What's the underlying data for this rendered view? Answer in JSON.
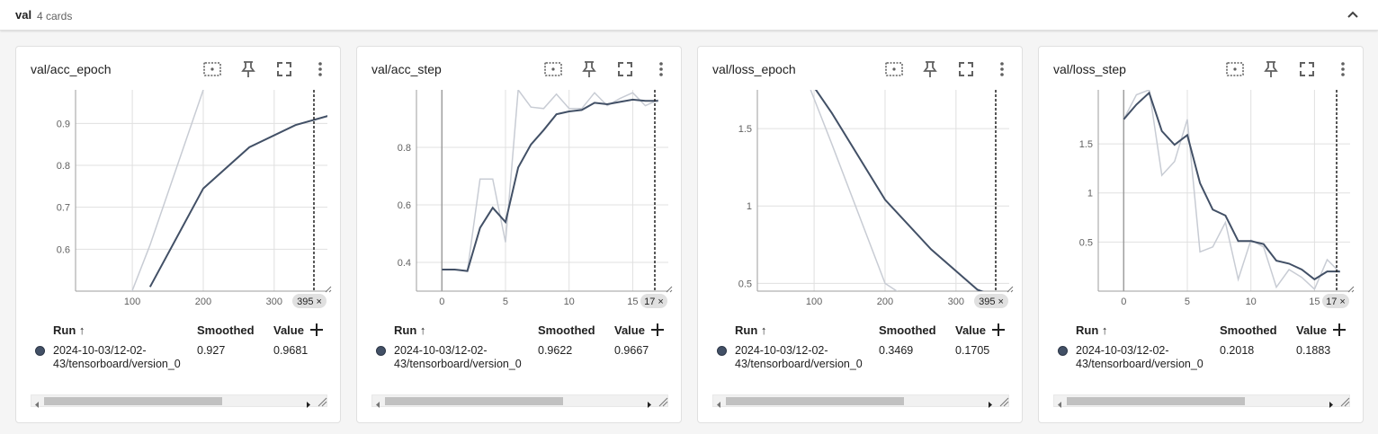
{
  "section": {
    "name": "val",
    "count_label": "4 cards",
    "collapse_icon": "chevron-up-icon"
  },
  "table_headers": {
    "run": "Run ↑",
    "smoothed": "Smoothed",
    "value": "Value"
  },
  "colors": {
    "smoothed_line": "#425066",
    "raw_line": "#c8ccd4",
    "grid": "#e0e0e0",
    "axis": "#9e9e9e"
  },
  "cards": [
    {
      "title": "val/acc_epoch",
      "run_dot_color": "#425066",
      "run_name": "2024-10-03/12-02-43/tensorboard/version_0",
      "smoothed": "0.927",
      "value": "0.9681",
      "step_badge": "395 ×",
      "chart_data": {
        "type": "line",
        "xlabel": "",
        "ylabel": "",
        "xlim": [
          20,
          375
        ],
        "ylim": [
          0.5,
          0.98
        ],
        "x_ticks": [
          "100",
          "200",
          "300"
        ],
        "x_tick_values": [
          100,
          200,
          300
        ],
        "y_ticks": [
          "0.9",
          "0.8",
          "0.7",
          "0.6"
        ],
        "y_tick_values": [
          0.9,
          0.8,
          0.7,
          0.6
        ],
        "cursor_x": 395,
        "series": [
          {
            "role": "raw",
            "x": [
              95,
              125,
              200
            ],
            "y": [
              0.48,
              0.61,
              0.98
            ]
          },
          {
            "role": "smoothed",
            "x": [
              125,
              200,
              265,
              330,
              395
            ],
            "y": [
              0.51,
              0.745,
              0.843,
              0.896,
              0.927
            ]
          }
        ]
      }
    },
    {
      "title": "val/acc_step",
      "run_dot_color": "#425066",
      "run_name": "2024-10-03/12-02-43/tensorboard/version_0",
      "smoothed": "0.9622",
      "value": "0.9667",
      "step_badge": "17 ×",
      "chart_data": {
        "type": "line",
        "xlabel": "",
        "ylabel": "",
        "xlim": [
          -2,
          17.8
        ],
        "ylim": [
          0.3,
          1.0
        ],
        "x_ticks": [
          "0",
          "5",
          "10",
          "15"
        ],
        "x_tick_values": [
          0,
          5,
          10,
          15
        ],
        "y_ticks": [
          "0.8",
          "0.6",
          "0.4"
        ],
        "y_tick_values": [
          0.8,
          0.6,
          0.4
        ],
        "cursor_x": 17,
        "series": [
          {
            "role": "raw",
            "x": [
              0,
              1,
              2,
              3,
              4,
              5,
              6,
              7,
              8,
              9,
              10,
              11,
              12,
              13,
              14,
              15,
              16,
              17
            ],
            "y": [
              0.375,
              0.375,
              0.37,
              0.69,
              0.69,
              0.47,
              1.0,
              0.94,
              0.935,
              0.985,
              0.935,
              0.935,
              0.99,
              0.945,
              0.97,
              0.99,
              0.945,
              0.965
            ]
          },
          {
            "role": "smoothed",
            "x": [
              0,
              1,
              2,
              3,
              4,
              5,
              6,
              7,
              8,
              9,
              10,
              11,
              12,
              13,
              14,
              15,
              16,
              17
            ],
            "y": [
              0.375,
              0.375,
              0.37,
              0.52,
              0.59,
              0.54,
              0.73,
              0.81,
              0.86,
              0.915,
              0.925,
              0.93,
              0.955,
              0.95,
              0.958,
              0.966,
              0.962,
              0.962
            ]
          }
        ]
      }
    },
    {
      "title": "val/loss_epoch",
      "run_dot_color": "#425066",
      "run_name": "2024-10-03/12-02-43/tensorboard/version_0",
      "smoothed": "0.3469",
      "value": "0.1705",
      "step_badge": "395 ×",
      "chart_data": {
        "type": "line",
        "xlabel": "",
        "ylabel": "",
        "xlim": [
          20,
          375
        ],
        "ylim": [
          0.45,
          1.75
        ],
        "x_ticks": [
          "100",
          "200",
          "300"
        ],
        "x_tick_values": [
          100,
          200,
          300
        ],
        "y_ticks": [
          "1.5",
          "1",
          "0.5"
        ],
        "y_tick_values": [
          1.5,
          1.0,
          0.5
        ],
        "cursor_x": 395,
        "series": [
          {
            "role": "raw",
            "x": [
              95,
              125,
              200,
              250
            ],
            "y": [
              1.75,
              1.4,
              0.5,
              0.35
            ]
          },
          {
            "role": "smoothed",
            "x": [
              95,
              125,
              200,
              265,
              330,
              395
            ],
            "y": [
              1.8,
              1.6,
              1.04,
              0.72,
              0.46,
              0.347
            ]
          }
        ]
      }
    },
    {
      "title": "val/loss_step",
      "run_dot_color": "#425066",
      "run_name": "2024-10-03/12-02-43/tensorboard/version_0",
      "smoothed": "0.2018",
      "value": "0.1883",
      "step_badge": "17 ×",
      "chart_data": {
        "type": "line",
        "xlabel": "",
        "ylabel": "",
        "xlim": [
          -2,
          17.8
        ],
        "ylim": [
          0,
          2.05
        ],
        "x_ticks": [
          "0",
          "5",
          "10",
          "15"
        ],
        "x_tick_values": [
          0,
          5,
          10,
          15
        ],
        "y_ticks": [
          "1.5",
          "1",
          "0.5"
        ],
        "y_tick_values": [
          1.5,
          1.0,
          0.5
        ],
        "cursor_x": 17,
        "series": [
          {
            "role": "raw",
            "x": [
              0,
              1,
              2,
              3,
              4,
              5,
              6,
              7,
              8,
              9,
              10,
              11,
              12,
              13,
              14,
              15,
              16,
              17
            ],
            "y": [
              1.75,
              2.0,
              2.05,
              1.18,
              1.32,
              1.75,
              0.4,
              0.45,
              0.7,
              0.12,
              0.52,
              0.45,
              0.04,
              0.22,
              0.14,
              0.02,
              0.32,
              0.19
            ]
          },
          {
            "role": "smoothed",
            "x": [
              0,
              1,
              2,
              3,
              4,
              5,
              6,
              7,
              8,
              9,
              10,
              11,
              12,
              13,
              14,
              15,
              16,
              17
            ],
            "y": [
              1.75,
              1.9,
              2.02,
              1.63,
              1.49,
              1.59,
              1.1,
              0.83,
              0.77,
              0.51,
              0.51,
              0.48,
              0.31,
              0.28,
              0.22,
              0.12,
              0.2,
              0.2
            ]
          }
        ]
      }
    }
  ]
}
